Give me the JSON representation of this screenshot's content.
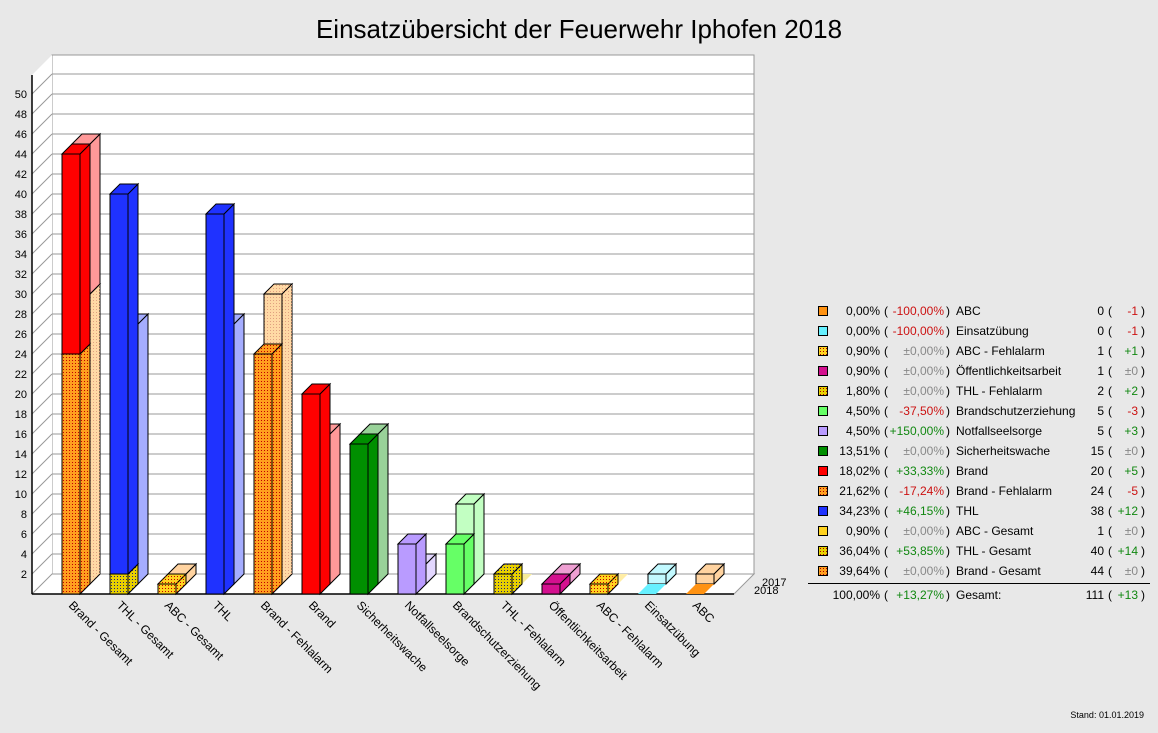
{
  "title": "Einsatzübersicht der Feuerwehr Iphofen 2018",
  "stand": "Stand: 01.01.2019",
  "chart_data": {
    "type": "bar",
    "title": "Einsatzübersicht der Feuerwehr Iphofen 2018",
    "xlabel": "",
    "ylabel": "",
    "ylim": [
      0,
      52
    ],
    "yticks": [
      2,
      4,
      6,
      8,
      10,
      12,
      14,
      16,
      18,
      20,
      22,
      24,
      26,
      28,
      30,
      32,
      34,
      36,
      38,
      40,
      42,
      44,
      46,
      48,
      50
    ],
    "grid": true,
    "depth_labels": [
      "2017",
      "2018"
    ],
    "categories": [
      "Brand - Gesamt",
      "THL - Gesamt",
      "ABC - Gesamt",
      "THL",
      "Brand - Fehlalarm",
      "Brand",
      "Sicherheitswache",
      "Notfallseelsorge",
      "Brandschutzerziehung",
      "THL - Fehlalarm",
      "Öffentlichkeitsarbeit",
      "ABC - Fehlalarm",
      "Einsatzübung",
      "ABC"
    ],
    "series": [
      {
        "name": "2018",
        "values": [
          44,
          40,
          1,
          38,
          24,
          20,
          15,
          5,
          5,
          2,
          1,
          1,
          0,
          0
        ]
      },
      {
        "name": "2017",
        "values": [
          44,
          26,
          1,
          26,
          29,
          15,
          15,
          2,
          8,
          0,
          1,
          0,
          1,
          1
        ]
      }
    ],
    "stacks": {
      "2018": [
        [
          {
            "part": "Brand - Fehlalarm",
            "value": 24
          },
          {
            "part": "Brand",
            "value": 20
          }
        ],
        [
          {
            "part": "THL - Fehlalarm",
            "value": 2
          },
          {
            "part": "THL",
            "value": 38
          }
        ],
        [
          {
            "part": "ABC - Fehlalarm",
            "value": 1
          },
          {
            "part": "ABC",
            "value": 0
          }
        ]
      ],
      "2017": [
        [
          {
            "part": "Brand - Fehlalarm",
            "value": 29
          },
          {
            "part": "Brand",
            "value": 15
          }
        ],
        [
          {
            "part": "THL - Fehlalarm",
            "value": 0
          },
          {
            "part": "THL",
            "value": 26
          }
        ],
        [
          {
            "part": "ABC - Fehlalarm",
            "value": 0
          },
          {
            "part": "ABC",
            "value": 1
          }
        ]
      ]
    },
    "colors": {
      "Brand - Gesamt": "#ff9f1f",
      "THL - Gesamt": "#e8d000",
      "ABC - Gesamt": "#ffd21f",
      "THL": "#1f32ff",
      "Brand - Fehlalarm": "#ff9f1f",
      "Brand": "#ff0000",
      "Sicherheitswache": "#008f00",
      "Notfallseelsorge": "#b99bff",
      "Brandschutzerziehung": "#66ff66",
      "THL - Fehlalarm": "#e8d000",
      "Öffentlichkeitsarbeit": "#d4108f",
      "ABC - Fehlalarm": "#ffd21f",
      "Einsatzübung": "#66f0ff",
      "ABC": "#ff9212"
    },
    "patterned": [
      "Brand - Gesamt",
      "THL - Gesamt",
      "ABC - Gesamt",
      "Brand - Fehlalarm",
      "THL - Fehlalarm",
      "ABC - Fehlalarm"
    ]
  },
  "legend": {
    "rows": [
      {
        "color": "#ff9212",
        "pattern": false,
        "pct": "0,00%",
        "change": "-100,00%",
        "sign": "neg",
        "name": "ABC",
        "value": "0",
        "diff": "-1",
        "dsign": "neg"
      },
      {
        "color": "#66f0ff",
        "pattern": false,
        "pct": "0,00%",
        "change": "-100,00%",
        "sign": "neg",
        "name": "Einsatzübung",
        "value": "0",
        "diff": "-1",
        "dsign": "neg"
      },
      {
        "color": "#ffd21f",
        "pattern": true,
        "pct": "0,90%",
        "change": "±0,00%",
        "sign": "zero",
        "name": "ABC - Fehlalarm",
        "value": "1",
        "diff": "+1",
        "dsign": "pos"
      },
      {
        "color": "#d4108f",
        "pattern": false,
        "pct": "0,90%",
        "change": "±0,00%",
        "sign": "zero",
        "name": "Öffentlichkeitsarbeit",
        "value": "1",
        "diff": "±0",
        "dsign": "zero"
      },
      {
        "color": "#e8d000",
        "pattern": true,
        "pct": "1,80%",
        "change": "±0,00%",
        "sign": "zero",
        "name": "THL - Fehlalarm",
        "value": "2",
        "diff": "+2",
        "dsign": "pos"
      },
      {
        "color": "#66ff66",
        "pattern": false,
        "pct": "4,50%",
        "change": "-37,50%",
        "sign": "neg",
        "name": "Brandschutzerziehung",
        "value": "5",
        "diff": "-3",
        "dsign": "neg"
      },
      {
        "color": "#b99bff",
        "pattern": false,
        "pct": "4,50%",
        "change": "+150,00%",
        "sign": "pos",
        "name": "Notfallseelsorge",
        "value": "5",
        "diff": "+3",
        "dsign": "pos"
      },
      {
        "color": "#008f00",
        "pattern": false,
        "pct": "13,51%",
        "change": "±0,00%",
        "sign": "zero",
        "name": "Sicherheitswache",
        "value": "15",
        "diff": "±0",
        "dsign": "zero"
      },
      {
        "color": "#ff0000",
        "pattern": false,
        "pct": "18,02%",
        "change": "+33,33%",
        "sign": "pos",
        "name": "Brand",
        "value": "20",
        "diff": "+5",
        "dsign": "pos"
      },
      {
        "color": "#ff9f1f",
        "pattern": true,
        "pct": "21,62%",
        "change": "-17,24%",
        "sign": "neg",
        "name": "Brand - Fehlalarm",
        "value": "24",
        "diff": "-5",
        "dsign": "neg"
      },
      {
        "color": "#1f32ff",
        "pattern": false,
        "pct": "34,23%",
        "change": "+46,15%",
        "sign": "pos",
        "name": "THL",
        "value": "38",
        "diff": "+12",
        "dsign": "pos"
      },
      {
        "color": "#ffd21f",
        "pattern": false,
        "pct": "0,90%",
        "change": "±0,00%",
        "sign": "zero",
        "name": "ABC - Gesamt",
        "value": "1",
        "diff": "±0",
        "dsign": "zero"
      },
      {
        "color": "#e8d000",
        "pattern": true,
        "pct": "36,04%",
        "change": "+53,85%",
        "sign": "pos",
        "name": "THL - Gesamt",
        "value": "40",
        "diff": "+14",
        "dsign": "pos"
      },
      {
        "color": "#ff9f1f",
        "pattern": true,
        "pct": "39,64%",
        "change": "±0,00%",
        "sign": "zero",
        "name": "Brand - Gesamt",
        "value": "44",
        "diff": "±0",
        "dsign": "zero"
      }
    ],
    "total": {
      "pct": "100,00%",
      "change": "+13,27%",
      "sign": "pos",
      "name": "Gesamt:",
      "value": "111",
      "diff": "+13",
      "dsign": "pos"
    }
  }
}
